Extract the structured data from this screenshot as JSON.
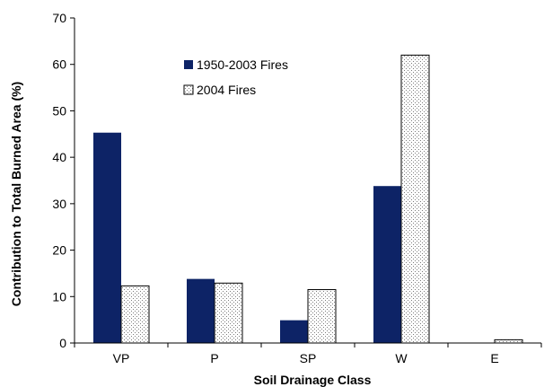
{
  "chart_data": {
    "type": "bar",
    "title": "",
    "xlabel": "Soil Drainage Class",
    "ylabel": "Contribution to Total Burned Area (%)",
    "categories": [
      "VP",
      "P",
      "SP",
      "W",
      "E"
    ],
    "ylim": [
      0,
      70
    ],
    "yticks": [
      0,
      10,
      20,
      30,
      40,
      50,
      60,
      70
    ],
    "grid": false,
    "legend_position": "top-center",
    "series": [
      {
        "name": "1950-2003 Fires",
        "values": [
          45.3,
          13.8,
          4.9,
          33.8,
          0
        ],
        "color": "#0d2366",
        "pattern": "solid"
      },
      {
        "name": "2004 Fires",
        "values": [
          12.3,
          12.9,
          11.5,
          62.0,
          0.7
        ],
        "color": "#ffffff",
        "pattern": "dotted"
      }
    ]
  }
}
